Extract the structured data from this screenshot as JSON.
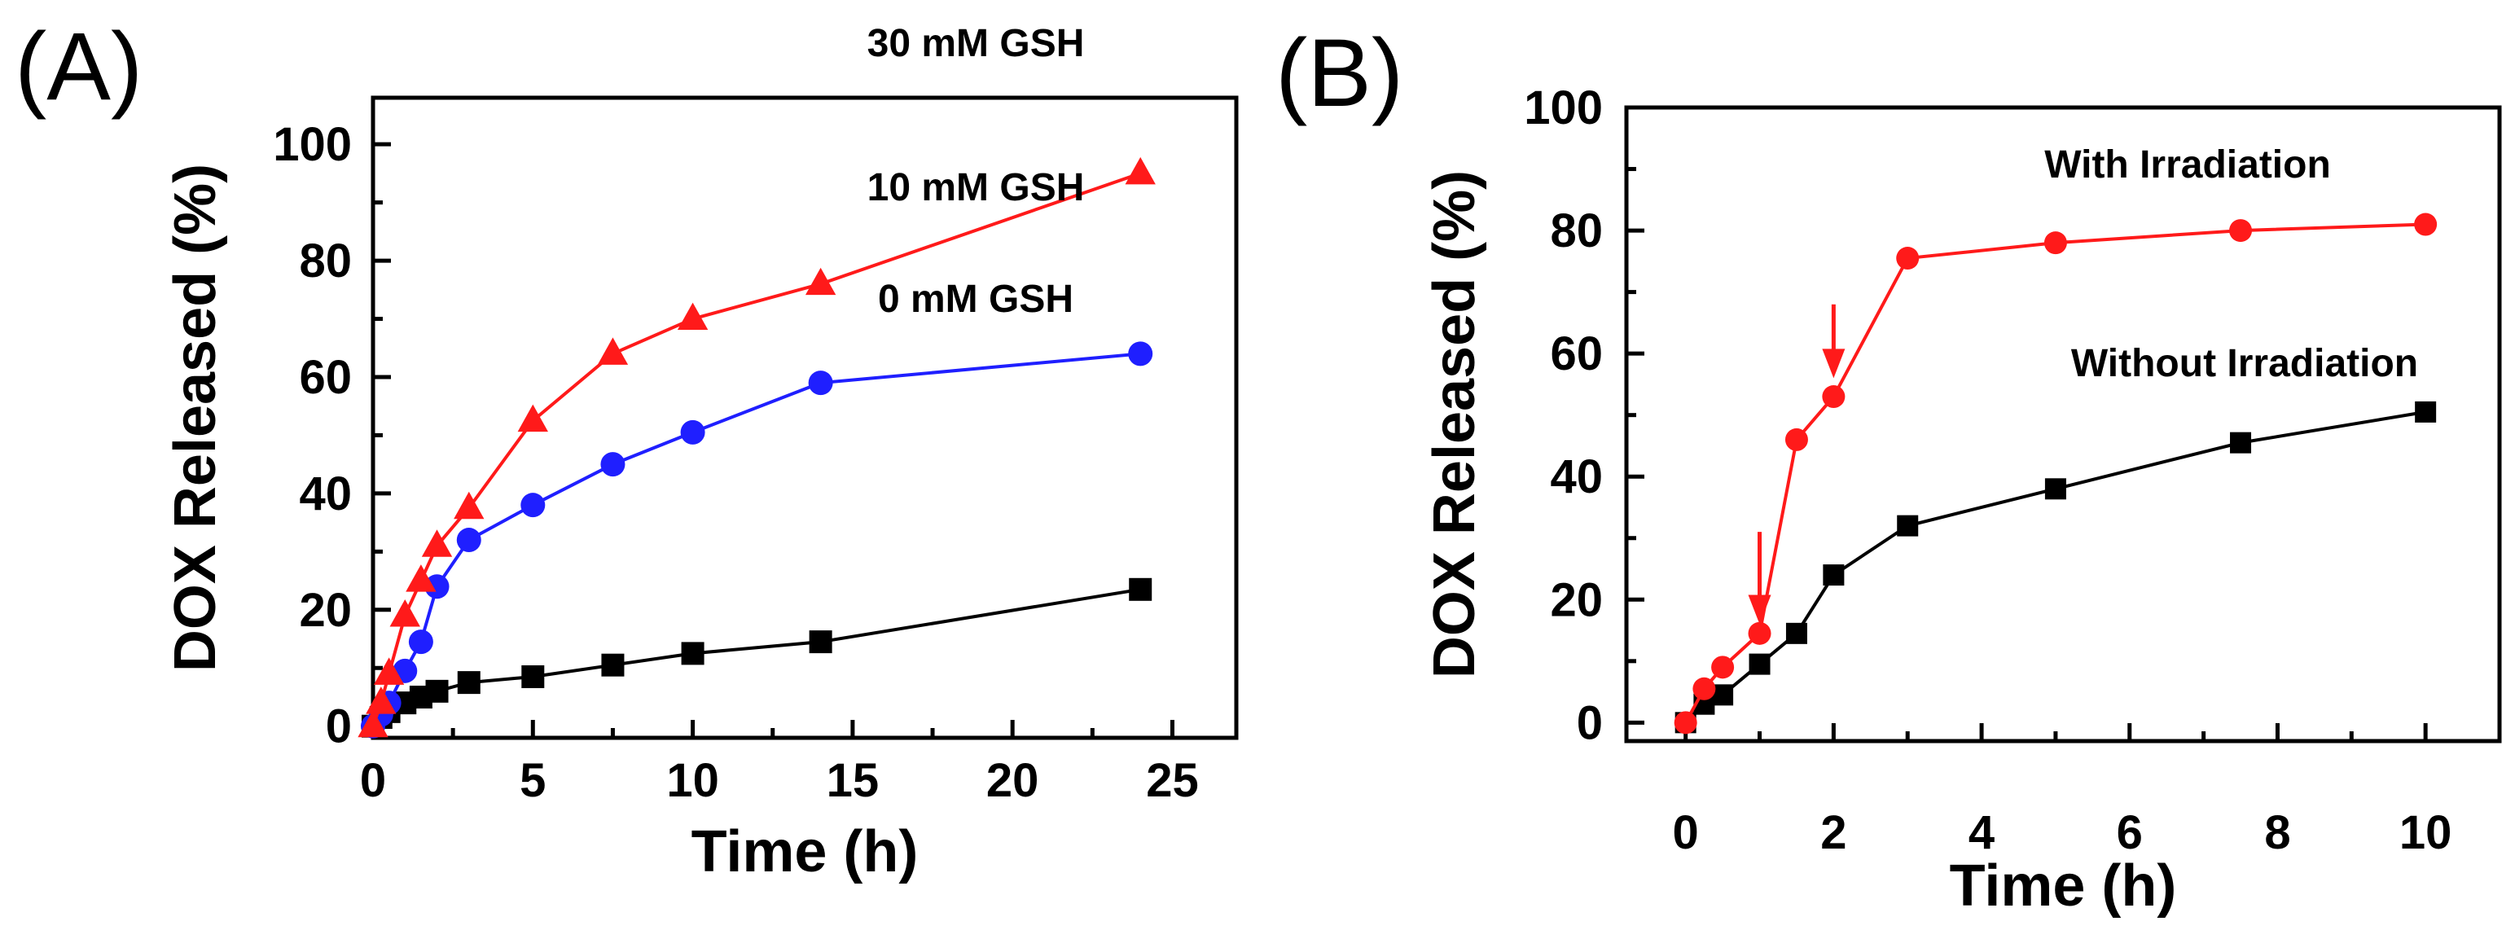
{
  "chart_data": [
    {
      "panel_label": "(A)",
      "type": "line",
      "xlabel": "Time (h)",
      "ylabel": "DOX Released (%)",
      "xlim": [
        0,
        27
      ],
      "ylim": [
        -2,
        108
      ],
      "xticks": [
        0,
        5,
        10,
        15,
        20,
        25
      ],
      "yticks": [
        0,
        20,
        40,
        60,
        80,
        100
      ],
      "xtick_labels": [
        "0",
        "5",
        "10",
        "15",
        "20",
        "25"
      ],
      "ytick_labels": [
        "0",
        "20",
        "40",
        "60",
        "80",
        "100"
      ],
      "series": [
        {
          "name": "0 mM GSH",
          "color": "#000000",
          "marker": "square",
          "x": [
            0,
            0.25,
            0.5,
            1,
            1.5,
            2,
            3,
            5,
            7.5,
            10,
            14,
            24
          ],
          "values": [
            0,
            1.5,
            2.5,
            4,
            5,
            6,
            7.5,
            8.5,
            10.5,
            12.5,
            14.5,
            23.5
          ]
        },
        {
          "name": "10 mM GSH",
          "color": "#1f1fff",
          "marker": "circle",
          "x": [
            0,
            0.25,
            0.5,
            1,
            1.5,
            2,
            3,
            5,
            7.5,
            10,
            14,
            24
          ],
          "values": [
            0,
            2,
            4,
            9.5,
            14.5,
            24,
            32,
            38,
            45,
            50.5,
            59,
            64
          ]
        },
        {
          "name": "30 mM GSH",
          "color": "#ff1a1a",
          "marker": "triangle",
          "x": [
            0,
            0.25,
            0.5,
            1,
            1.5,
            2,
            3,
            5,
            7.5,
            10,
            14,
            24
          ],
          "values": [
            0,
            4,
            9,
            19,
            25,
            31,
            37.5,
            52.5,
            64,
            70,
            76,
            95
          ]
        }
      ]
    },
    {
      "panel_label": "(B)",
      "type": "line",
      "xlabel": "Time (h)",
      "ylabel": "DOX Released (%)",
      "xlim": [
        -0.8,
        11
      ],
      "ylim": [
        -3,
        100
      ],
      "xticks": [
        0,
        2,
        4,
        6,
        8,
        10
      ],
      "yticks": [
        0,
        20,
        40,
        60,
        80,
        100
      ],
      "xtick_labels": [
        "0",
        "2",
        "4",
        "6",
        "8",
        "10"
      ],
      "ytick_labels": [
        "0",
        "20",
        "40",
        "60",
        "80",
        "100"
      ],
      "series": [
        {
          "name": "Without Irradiation",
          "color": "#000000",
          "marker": "square",
          "x": [
            0,
            0.25,
            0.5,
            1,
            1.5,
            2,
            3,
            5,
            7.5,
            10
          ],
          "values": [
            0,
            3,
            4.5,
            9.5,
            14.5,
            24,
            32,
            38,
            45.5,
            50.5
          ]
        },
        {
          "name": "With Irradiation",
          "color": "#ff1a1a",
          "marker": "circle",
          "x": [
            0,
            0.25,
            0.5,
            1,
            1.5,
            2,
            3,
            5,
            7.5,
            10
          ],
          "values": [
            0,
            5.5,
            9,
            14.5,
            46,
            53,
            75.5,
            78,
            80,
            81
          ]
        }
      ],
      "annotations": [
        {
          "type": "arrow",
          "x": 1,
          "from_y": 31,
          "to_y": 16,
          "color": "#ff1a1a"
        },
        {
          "type": "arrow",
          "x": 2,
          "from_y": 68,
          "to_y": 56,
          "color": "#ff1a1a"
        }
      ]
    }
  ]
}
